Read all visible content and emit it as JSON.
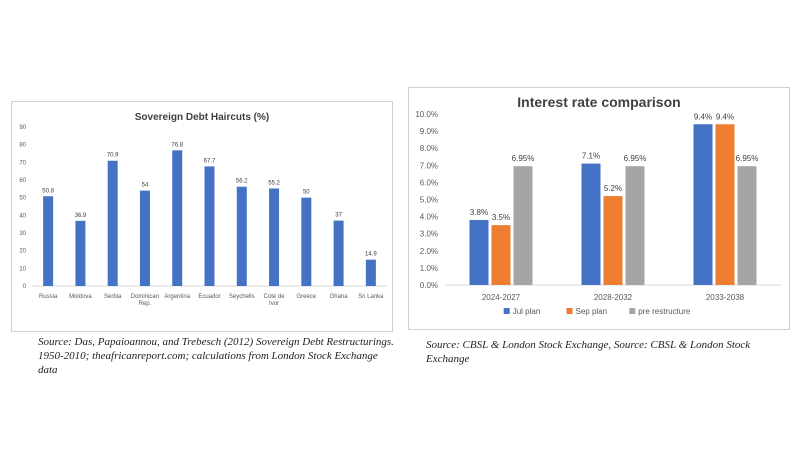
{
  "chart_data": [
    {
      "type": "bar",
      "title": "Sovereign Debt Haircuts (%)",
      "xlabel": "",
      "ylabel": "",
      "categories": [
        "Russia",
        "Moldova",
        "Serbia",
        "Dominican Rep.",
        "Argentina",
        "Ecuador",
        "Seychells",
        "Cote de Ivor",
        "Greece",
        "Ghana",
        "Sri Lanka"
      ],
      "values": [
        50.8,
        36.9,
        70.9,
        54,
        76.8,
        67.7,
        56.2,
        55.2,
        50,
        37,
        14.9
      ],
      "value_labels": [
        "50.8",
        "36.9",
        "70.9",
        "54",
        "76.8",
        "67.7",
        "56.2",
        "55.2",
        "50",
        "37",
        "14.9"
      ],
      "ylim": [
        0,
        90
      ],
      "yticks": [
        "0",
        "10",
        "20",
        "30",
        "40",
        "50",
        "60",
        "70",
        "80",
        "90"
      ],
      "grid": false,
      "color": "#4472c4"
    },
    {
      "type": "bar",
      "title": "Interest rate comparison",
      "xlabel": "",
      "ylabel": "",
      "categories": [
        "2024-2027",
        "2028-2032",
        "2033-2038"
      ],
      "series": [
        {
          "name": "Jul plan",
          "values": [
            3.8,
            7.1,
            9.4
          ],
          "labels": [
            "3.8%",
            "7.1%",
            "9.4%"
          ],
          "color": "#4472c4"
        },
        {
          "name": "Sep plan",
          "values": [
            3.5,
            5.2,
            9.4
          ],
          "labels": [
            "3.5%",
            "5.2%",
            "9.4%"
          ],
          "color": "#ed7d31"
        },
        {
          "name": "pre restructure",
          "values": [
            6.95,
            6.95,
            6.95
          ],
          "labels": [
            "6.95%",
            "6.95%",
            "6.95%"
          ],
          "color": "#a5a5a5"
        }
      ],
      "ylim": [
        0,
        10
      ],
      "yticks": [
        "0.0%",
        "1.0%",
        "2.0%",
        "3.0%",
        "4.0%",
        "5.0%",
        "6.0%",
        "7.0%",
        "8.0%",
        "9.0%",
        "10.0%"
      ],
      "grid": false,
      "legend": "bottom"
    }
  ],
  "captions": {
    "left": "Source: Das, Papaioannou, and Trebesch (2012) Sovereign Debt Restructurings. 1950-2010; theafricanreport.com; calculations from London Stock Exchange data",
    "right": "Source: CBSL & London Stock Exchange, Source: CBSL & London Stock Exchange"
  }
}
